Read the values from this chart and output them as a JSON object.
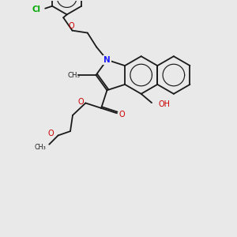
{
  "bg_color": "#e9e9e9",
  "bond_color": "#1a1a1a",
  "n_color": "#2020ff",
  "o_color": "#cc0000",
  "cl_color": "#00aa00",
  "lw": 1.3,
  "fig_size": [
    3.0,
    3.0
  ],
  "dpi": 100,
  "xlim": [
    0,
    10
  ],
  "ylim": [
    0,
    10
  ]
}
